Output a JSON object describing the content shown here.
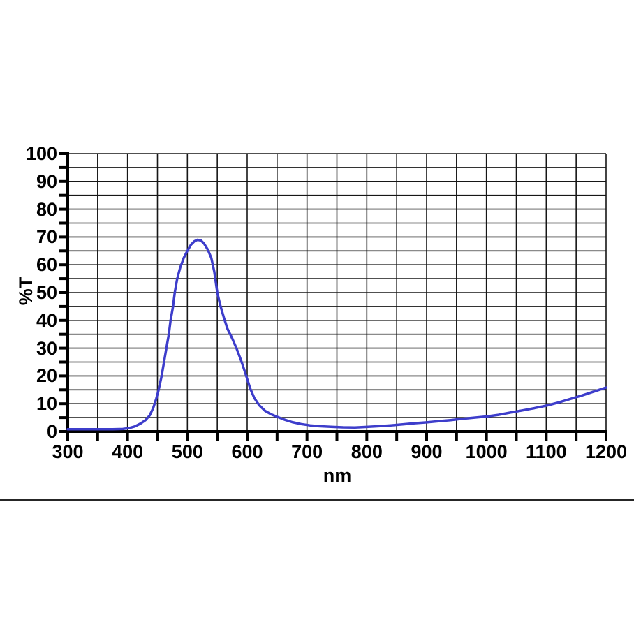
{
  "page": {
    "background": "#ffffff"
  },
  "chart_data": {
    "type": "line",
    "title": "",
    "xlabel": "nm",
    "ylabel": "%T",
    "xlim": [
      300,
      1200
    ],
    "ylim": [
      0,
      100
    ],
    "x_tick_labels": [
      300,
      400,
      500,
      600,
      700,
      800,
      900,
      1000,
      1100,
      1200
    ],
    "y_tick_labels": [
      0,
      10,
      20,
      30,
      40,
      50,
      60,
      70,
      80,
      90,
      100
    ],
    "x_minor_step": 50,
    "y_minor_step": 5,
    "grid": {
      "on": true,
      "vertical_step_nm": 50,
      "horizontal_step_pct": 5,
      "color": "#161616"
    },
    "axis_color": "#000000",
    "legend": null,
    "series": [
      {
        "name": "transmittance",
        "color": "#3d3dcb",
        "points": [
          [
            300,
            0.8
          ],
          [
            325,
            0.8
          ],
          [
            350,
            0.8
          ],
          [
            375,
            0.8
          ],
          [
            392,
            0.9
          ],
          [
            402,
            1.2
          ],
          [
            412,
            1.8
          ],
          [
            422,
            2.9
          ],
          [
            430,
            4.1
          ],
          [
            437,
            5.8
          ],
          [
            443,
            8.5
          ],
          [
            448,
            11.8
          ],
          [
            452,
            15
          ],
          [
            457,
            20
          ],
          [
            461,
            25
          ],
          [
            465,
            30
          ],
          [
            469,
            35
          ],
          [
            472,
            40
          ],
          [
            476,
            45
          ],
          [
            479,
            50
          ],
          [
            483,
            55
          ],
          [
            488,
            59
          ],
          [
            494,
            62.5
          ],
          [
            500,
            65
          ],
          [
            506,
            67.2
          ],
          [
            512,
            68.5
          ],
          [
            517,
            69
          ],
          [
            523,
            68.7
          ],
          [
            528,
            67.6
          ],
          [
            534,
            65.5
          ],
          [
            540,
            62.5
          ],
          [
            545,
            57.5
          ],
          [
            550,
            50
          ],
          [
            555,
            45.5
          ],
          [
            561,
            41
          ],
          [
            567,
            37
          ],
          [
            575,
            33.5
          ],
          [
            583,
            29.5
          ],
          [
            590,
            25.5
          ],
          [
            597,
            21
          ],
          [
            605,
            15.5
          ],
          [
            612,
            12
          ],
          [
            620,
            9.5
          ],
          [
            630,
            7.4
          ],
          [
            640,
            6.2
          ],
          [
            650,
            5.3
          ],
          [
            662,
            4.3
          ],
          [
            675,
            3.4
          ],
          [
            690,
            2.7
          ],
          [
            705,
            2.2
          ],
          [
            720,
            1.9
          ],
          [
            740,
            1.7
          ],
          [
            760,
            1.5
          ],
          [
            780,
            1.45
          ],
          [
            800,
            1.65
          ],
          [
            820,
            1.9
          ],
          [
            840,
            2.2
          ],
          [
            860,
            2.6
          ],
          [
            880,
            3.0
          ],
          [
            900,
            3.3
          ],
          [
            920,
            3.7
          ],
          [
            940,
            4.1
          ],
          [
            960,
            4.6
          ],
          [
            980,
            5.0
          ],
          [
            1000,
            5.4
          ],
          [
            1020,
            6.0
          ],
          [
            1040,
            6.8
          ],
          [
            1060,
            7.6
          ],
          [
            1080,
            8.4
          ],
          [
            1100,
            9.3
          ],
          [
            1120,
            10.4
          ],
          [
            1140,
            11.7
          ],
          [
            1160,
            13.0
          ],
          [
            1180,
            14.4
          ],
          [
            1200,
            15.8
          ]
        ]
      }
    ]
  },
  "divider": {
    "present": true
  }
}
